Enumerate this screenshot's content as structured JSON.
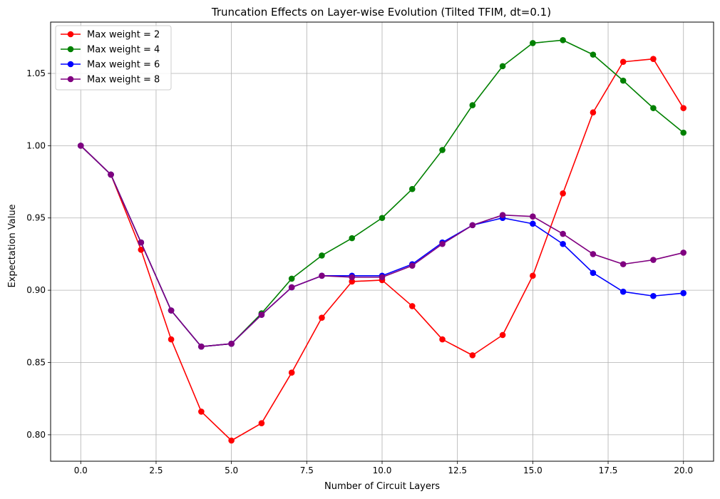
{
  "chart_data": {
    "type": "line",
    "title": "Truncation Effects on Layer-wise Evolution (Tilted TFIM, dt=0.1)",
    "xlabel": "Number of Circuit Layers",
    "ylabel": "Expectation Value",
    "xlim": [
      -1.0,
      21.0
    ],
    "ylim": [
      0.7817,
      1.0855
    ],
    "xticks": [
      0.0,
      2.5,
      5.0,
      7.5,
      10.0,
      12.5,
      15.0,
      17.5,
      20.0
    ],
    "xtick_labels": [
      "0.0",
      "2.5",
      "5.0",
      "7.5",
      "10.0",
      "12.5",
      "15.0",
      "17.5",
      "20.0"
    ],
    "yticks": [
      0.8,
      0.85,
      0.9,
      0.95,
      1.0,
      1.05
    ],
    "ytick_labels": [
      "0.80",
      "0.85",
      "0.90",
      "0.95",
      "1.00",
      "1.05"
    ],
    "grid": true,
    "legend_position": "top-left",
    "x": [
      0,
      1,
      2,
      3,
      4,
      5,
      6,
      7,
      8,
      9,
      10,
      11,
      12,
      13,
      14,
      15,
      16,
      17,
      18,
      19,
      20
    ],
    "series": [
      {
        "name": "Max weight = 2",
        "color": "#ff0000",
        "values": [
          1.0,
          0.98,
          0.928,
          0.866,
          0.816,
          0.796,
          0.808,
          0.843,
          0.881,
          0.906,
          0.907,
          0.889,
          0.866,
          0.855,
          0.869,
          0.91,
          0.967,
          1.023,
          1.058,
          1.06,
          1.026
        ]
      },
      {
        "name": "Max weight = 4",
        "color": "#008000",
        "values": [
          1.0,
          0.98,
          0.933,
          0.886,
          0.861,
          0.863,
          0.884,
          0.908,
          0.924,
          0.936,
          0.95,
          0.97,
          0.997,
          1.028,
          1.055,
          1.071,
          1.073,
          1.063,
          1.045,
          1.026,
          1.009
        ]
      },
      {
        "name": "Max weight = 6",
        "color": "#0000ff",
        "values": [
          1.0,
          0.98,
          0.933,
          0.886,
          0.861,
          0.863,
          0.883,
          0.902,
          0.91,
          0.91,
          0.91,
          0.918,
          0.933,
          0.945,
          0.95,
          0.946,
          0.932,
          0.912,
          0.899,
          0.896,
          0.898
        ]
      },
      {
        "name": "Max weight = 8",
        "color": "#800080",
        "values": [
          1.0,
          0.98,
          0.933,
          0.886,
          0.861,
          0.863,
          0.883,
          0.902,
          0.91,
          0.909,
          0.909,
          0.917,
          0.932,
          0.945,
          0.952,
          0.951,
          0.939,
          0.925,
          0.918,
          0.921,
          0.926
        ]
      }
    ]
  }
}
